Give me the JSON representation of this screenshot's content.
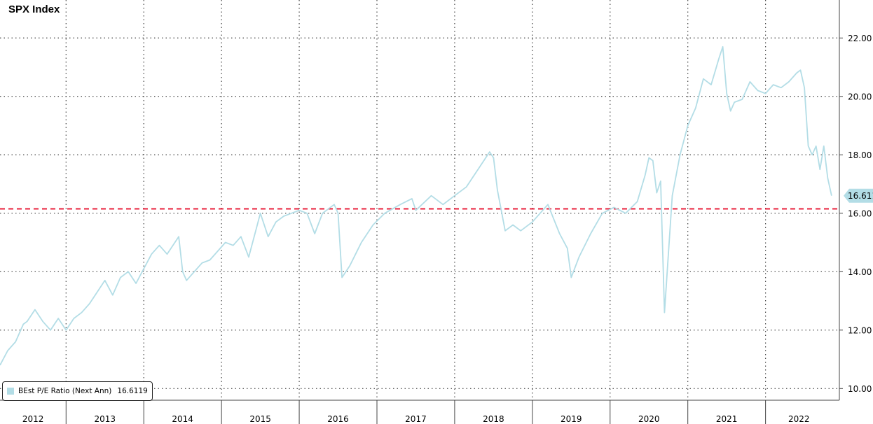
{
  "chart_data": {
    "type": "line",
    "title": "SPX Index",
    "x_tick_labels": [
      "2012",
      "2013",
      "2014",
      "2015",
      "2016",
      "2017",
      "2018",
      "2019",
      "2020",
      "2021",
      "2022"
    ],
    "y_tick_labels": [
      "10.00",
      "12.00",
      "14.00",
      "16.00",
      "18.00",
      "20.00",
      "22.00"
    ],
    "ylim": [
      9.6,
      23.3
    ],
    "xlim": [
      2011.65,
      2022.45
    ],
    "grid": true,
    "legend_position": "bottom-left",
    "reference_line": {
      "value": 16.15,
      "color": "#e8223c",
      "style": "dashed"
    },
    "series": [
      {
        "name": "BEst P/E Ratio (Next Ann)",
        "last_value_label": "16.6119",
        "last_value_tag": "16.611",
        "color": "#b3dde6",
        "x": [
          2011.65,
          2011.75,
          2011.85,
          2011.95,
          2012.0,
          2012.1,
          2012.2,
          2012.3,
          2012.4,
          2012.5,
          2012.6,
          2012.7,
          2012.8,
          2012.9,
          2013.0,
          2013.1,
          2013.2,
          2013.3,
          2013.4,
          2013.5,
          2013.6,
          2013.7,
          2013.8,
          2013.95,
          2014.0,
          2014.05,
          2014.15,
          2014.25,
          2014.35,
          2014.45,
          2014.55,
          2014.65,
          2014.75,
          2014.85,
          2014.95,
          2015.0,
          2015.1,
          2015.2,
          2015.3,
          2015.4,
          2015.5,
          2015.6,
          2015.7,
          2015.8,
          2015.95,
          2016.0,
          2016.05,
          2016.15,
          2016.3,
          2016.45,
          2016.6,
          2016.8,
          2016.95,
          2017.0,
          2017.2,
          2017.35,
          2017.5,
          2017.65,
          2017.8,
          2017.95,
          2018.0,
          2018.05,
          2018.15,
          2018.25,
          2018.35,
          2018.5,
          2018.7,
          2018.85,
          2018.95,
          2019.0,
          2019.1,
          2019.25,
          2019.4,
          2019.55,
          2019.7,
          2019.85,
          2019.95,
          2020.0,
          2020.05,
          2020.1,
          2020.15,
          2020.2,
          2020.3,
          2020.4,
          2020.5,
          2020.6,
          2020.7,
          2020.8,
          2020.9,
          2020.95,
          2021.0,
          2021.05,
          2021.1,
          2021.2,
          2021.3,
          2021.4,
          2021.5,
          2021.6,
          2021.7,
          2021.8,
          2021.9,
          2021.95,
          2022.0,
          2022.05,
          2022.1,
          2022.15,
          2022.2,
          2022.25,
          2022.3,
          2022.35
        ],
        "y": [
          10.8,
          11.3,
          11.6,
          12.2,
          12.3,
          12.7,
          12.3,
          12.0,
          12.4,
          12.0,
          12.4,
          12.6,
          12.9,
          13.3,
          13.7,
          13.2,
          13.8,
          14.0,
          13.6,
          14.1,
          14.6,
          14.9,
          14.6,
          15.2,
          14.0,
          13.7,
          14.0,
          14.3,
          14.4,
          14.7,
          15.0,
          14.9,
          15.2,
          14.5,
          15.5,
          16.0,
          15.2,
          15.7,
          15.9,
          16.0,
          16.1,
          16.0,
          15.3,
          16.0,
          16.3,
          16.0,
          13.8,
          14.2,
          15.0,
          15.6,
          16.0,
          16.3,
          16.5,
          16.1,
          16.6,
          16.3,
          16.6,
          16.9,
          17.5,
          18.1,
          17.9,
          16.8,
          15.4,
          15.6,
          15.4,
          15.7,
          16.3,
          15.3,
          14.8,
          13.8,
          14.5,
          15.3,
          16.0,
          16.2,
          16.0,
          16.4,
          17.3,
          17.9,
          17.8,
          16.7,
          17.1,
          12.6,
          16.6,
          18.0,
          19.0,
          19.6,
          20.6,
          20.4,
          21.3,
          21.7,
          20.1,
          19.5,
          19.8,
          19.9,
          20.5,
          20.2,
          20.1,
          20.4,
          20.3,
          20.5,
          20.8,
          20.9,
          20.3,
          18.3,
          18.0,
          18.3,
          17.5,
          18.3,
          17.2,
          16.6
        ]
      }
    ]
  }
}
